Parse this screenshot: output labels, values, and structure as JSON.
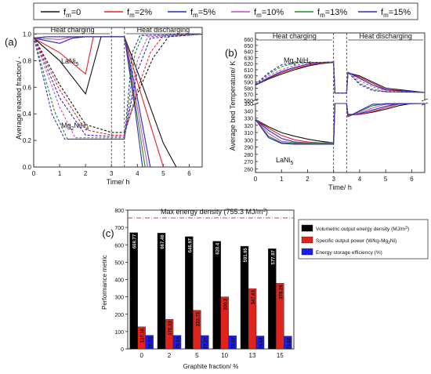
{
  "figure": {
    "legend": {
      "series_names": [
        "f",
        "f",
        "f",
        "f",
        "f",
        "f"
      ],
      "subscript": "m",
      "values": [
        "=0",
        "=2%",
        "=5%",
        "=10%",
        "=13%",
        "=15%"
      ],
      "colors": [
        "#111111",
        "#e0242a",
        "#2323c8",
        "#c44fbf",
        "#1a8a2a",
        "#3a2aa8"
      ]
    }
  },
  "chart_data": [
    {
      "type": "line",
      "panel_label": "(a)",
      "ylabel": "Average reacted fraction/ -",
      "xlabel": "Time/ h",
      "xlim": [
        0,
        6.5
      ],
      "ylim": [
        0,
        1.05
      ],
      "xticks": [
        "0",
        "1",
        "2",
        "3",
        "4",
        "5",
        "6"
      ],
      "yticks": [
        "0.0",
        "0.2",
        "0.4",
        "0.6",
        "0.8",
        "1.0"
      ],
      "phase_labels": [
        "Heat charging",
        "Heat discharging"
      ],
      "phase_boundaries": [
        3,
        3.5
      ],
      "annotations": [
        {
          "base": "LaNi",
          "sub": "5"
        },
        {
          "base": "Mg",
          "sub": "2",
          "tail": "NiH",
          "sub2": "4"
        }
      ],
      "series": [
        {
          "name": "LaNi5 fm=0",
          "color": "#111111",
          "style": "solid",
          "x": [
            0,
            1,
            2,
            2.6,
            3.5,
            4.0,
            4.5,
            5.0,
            5.5
          ],
          "y": [
            0.97,
            0.8,
            0.55,
            0.98,
            0.98,
            0.72,
            0.45,
            0.18,
            0.0
          ]
        },
        {
          "name": "LaNi5 fm=2%",
          "color": "#e0242a",
          "style": "solid",
          "x": [
            0,
            1,
            2,
            2.3,
            3.5,
            4.0,
            4.5,
            5.0
          ],
          "y": [
            0.97,
            0.86,
            0.7,
            0.98,
            0.98,
            0.64,
            0.32,
            0.0
          ]
        },
        {
          "name": "LaNi5 fm=5%",
          "color": "#2323c8",
          "style": "solid",
          "x": [
            0,
            1,
            1.5,
            2.0,
            3.5,
            4.0,
            4.5
          ],
          "y": [
            0.97,
            0.93,
            0.97,
            0.98,
            0.98,
            0.52,
            0.0
          ]
        },
        {
          "name": "LaNi5 fm=10%",
          "color": "#c44fbf",
          "style": "solid",
          "x": [
            0,
            1,
            1.5,
            3.5,
            4.0,
            4.4
          ],
          "y": [
            0.97,
            0.96,
            0.98,
            0.98,
            0.45,
            0.0
          ]
        },
        {
          "name": "LaNi5 fm=13%",
          "color": "#1a8a2a",
          "style": "solid",
          "x": [
            0,
            0.5,
            1.0,
            3.5,
            3.9,
            4.3
          ],
          "y": [
            0.97,
            0.98,
            0.98,
            0.98,
            0.5,
            0.0
          ]
        },
        {
          "name": "LaNi5 fm=15%",
          "color": "#3a2aa8",
          "style": "solid",
          "x": [
            0,
            0.5,
            1.0,
            3.5,
            3.9,
            4.2
          ],
          "y": [
            0.97,
            0.98,
            0.98,
            0.98,
            0.45,
            0.0
          ]
        },
        {
          "name": "Mg2NiH4 fm=0",
          "color": "#111111",
          "style": "dash",
          "x": [
            0,
            1,
            2,
            3.0,
            3.5,
            4.0,
            4.6,
            5.2,
            6.5
          ],
          "y": [
            0.98,
            0.62,
            0.32,
            0.26,
            0.26,
            0.55,
            0.82,
            0.98,
            1.0
          ]
        },
        {
          "name": "Mg2NiH4 fm=2%",
          "color": "#e0242a",
          "style": "dash",
          "x": [
            0,
            1,
            2,
            3.0,
            3.5,
            4.0,
            4.5,
            5.0,
            6.5
          ],
          "y": [
            0.98,
            0.58,
            0.28,
            0.24,
            0.24,
            0.58,
            0.86,
            0.99,
            1.0
          ]
        },
        {
          "name": "Mg2NiH4 fm=5%",
          "color": "#2323c8",
          "style": "dash",
          "x": [
            0,
            1,
            2,
            3.0,
            3.5,
            4.0,
            4.5,
            6.5
          ],
          "y": [
            0.98,
            0.52,
            0.24,
            0.23,
            0.23,
            0.72,
            0.97,
            1.0
          ]
        },
        {
          "name": "Mg2NiH4 fm=10%",
          "color": "#c44fbf",
          "style": "dash",
          "x": [
            0,
            1,
            1.6,
            3.0,
            3.5,
            4.0,
            4.4,
            6.5
          ],
          "y": [
            0.98,
            0.45,
            0.22,
            0.22,
            0.22,
            0.8,
            0.98,
            1.0
          ]
        },
        {
          "name": "Mg2NiH4 fm=13%",
          "color": "#1a8a2a",
          "style": "dash",
          "x": [
            0,
            0.8,
            1.3,
            3.0,
            3.5,
            3.9,
            4.2,
            6.5
          ],
          "y": [
            0.98,
            0.42,
            0.21,
            0.21,
            0.21,
            0.85,
            0.99,
            1.0
          ]
        },
        {
          "name": "Mg2NiH4 fm=15%",
          "color": "#3a2aa8",
          "style": "dash",
          "x": [
            0,
            0.7,
            1.2,
            3.0,
            3.5,
            3.8,
            4.1,
            6.5
          ],
          "y": [
            0.98,
            0.4,
            0.21,
            0.21,
            0.21,
            0.86,
            0.99,
            1.0
          ]
        }
      ]
    },
    {
      "type": "line",
      "panel_label": "(b)",
      "ylabel": "Average bed Temperature/ K",
      "xlabel": "Time/ h",
      "xlim": [
        0,
        6.5
      ],
      "ylim": [
        250,
        665
      ],
      "xticks": [
        "0",
        "1",
        "2",
        "3",
        "4",
        "5",
        "6"
      ],
      "yticks": [
        "260",
        "270",
        "280",
        "290",
        "300",
        "310",
        "320",
        "330",
        "340",
        "350",
        "560",
        "570",
        "580",
        "590",
        "600",
        "610",
        "620",
        "630",
        "640",
        "650",
        "660"
      ],
      "axis_break": [
        350,
        560
      ],
      "phase_labels": [
        "Heat charging",
        "Heat discharging"
      ],
      "phase_boundaries": [
        3,
        3.5
      ],
      "annotations": [
        {
          "base": "Mg",
          "sub": "2",
          "tail": "NiH",
          "sub2": "4"
        },
        {
          "base": "LaNi",
          "sub": "5"
        }
      ],
      "series": [
        {
          "name": "Mg2NiH4 fm=0",
          "color": "#111111",
          "style": "solid",
          "x": [
            0,
            0.5,
            1.0,
            1.5,
            2.0,
            2.5,
            3.0,
            3.05,
            3.5,
            3.55,
            4.0,
            4.5,
            5.0,
            6.5
          ],
          "y": [
            585,
            595,
            603,
            610,
            616,
            620,
            622,
            572,
            572,
            605,
            600,
            590,
            580,
            573
          ]
        },
        {
          "name": "Mg2NiH4 fm=2%",
          "color": "#e0242a",
          "style": "solid",
          "x": [
            0,
            0.5,
            1.0,
            1.5,
            2.0,
            2.5,
            3.0,
            3.05,
            3.5,
            3.55,
            4.0,
            4.5,
            5.0,
            6.5
          ],
          "y": [
            585,
            596,
            605,
            612,
            617,
            621,
            623,
            572,
            572,
            605,
            598,
            588,
            578,
            573
          ]
        },
        {
          "name": "Mg2NiH4 fm=5%",
          "color": "#2323c8",
          "style": "solid",
          "x": [
            0,
            0.5,
            1.0,
            1.5,
            2.0,
            2.5,
            3.0,
            3.05,
            3.5,
            3.55,
            4.0,
            4.5,
            5.0,
            6.5
          ],
          "y": [
            585,
            597,
            607,
            614,
            619,
            622,
            623,
            572,
            572,
            606,
            596,
            585,
            577,
            573
          ]
        },
        {
          "name": "Mg2NiH4 fm=10%",
          "color": "#c44fbf",
          "style": "dash",
          "x": [
            0,
            0.5,
            1.0,
            1.5,
            2.0,
            2.5,
            3.0,
            3.05,
            3.5,
            3.55,
            4.0,
            4.5,
            5.0,
            6.5
          ],
          "y": [
            586,
            600,
            610,
            617,
            621,
            622,
            623,
            572,
            572,
            606,
            592,
            582,
            575,
            573
          ]
        },
        {
          "name": "Mg2NiH4 fm=13%",
          "color": "#1a8a2a",
          "style": "dash",
          "x": [
            0,
            0.5,
            1.0,
            1.5,
            2.0,
            2.5,
            3.0,
            3.05,
            3.5,
            3.55,
            4.0,
            4.5,
            5.0,
            6.5
          ],
          "y": [
            586,
            603,
            615,
            621,
            622,
            622,
            622,
            572,
            572,
            606,
            588,
            578,
            574,
            573
          ]
        },
        {
          "name": "Mg2NiH4 fm=15%",
          "color": "#3a2aa8",
          "style": "dash",
          "x": [
            0,
            0.5,
            1.0,
            1.5,
            2.0,
            2.5,
            3.0,
            3.05,
            3.5,
            3.55,
            4.0,
            4.5,
            5.0,
            6.5
          ],
          "y": [
            586,
            605,
            618,
            622,
            622,
            622,
            622,
            572,
            572,
            606,
            586,
            576,
            574,
            573
          ]
        },
        {
          "name": "LaNi5 fm=0",
          "color": "#111111",
          "style": "solid",
          "x": [
            0,
            0.5,
            1.0,
            1.5,
            2.0,
            2.5,
            3.0,
            3.05,
            3.5,
            3.55,
            4.0,
            4.5,
            5.0,
            5.5,
            6.0,
            6.5
          ],
          "y": [
            328,
            318,
            310,
            305,
            301,
            298,
            296,
            350,
            350,
            335,
            335,
            338,
            342,
            347,
            350,
            350
          ]
        },
        {
          "name": "LaNi5 fm=2%",
          "color": "#e0242a",
          "style": "solid",
          "x": [
            0,
            0.5,
            1.0,
            1.5,
            2.0,
            2.5,
            3.0,
            3.05,
            3.5,
            3.55,
            4.0,
            4.5,
            5.0,
            5.5,
            6.0,
            6.5
          ],
          "y": [
            328,
            316,
            306,
            300,
            297,
            296,
            296,
            350,
            350,
            334,
            335,
            339,
            344,
            349,
            350,
            350
          ]
        },
        {
          "name": "LaNi5 fm=5%",
          "color": "#2323c8",
          "style": "solid",
          "x": [
            0,
            0.5,
            1.0,
            1.5,
            2.0,
            2.5,
            3.0,
            3.05,
            3.5,
            3.55,
            4.0,
            4.5,
            5.0,
            5.5,
            6.5
          ],
          "y": [
            328,
            313,
            302,
            297,
            296,
            296,
            296,
            350,
            350,
            333,
            336,
            341,
            346,
            350,
            350
          ]
        },
        {
          "name": "LaNi5 fm=10%",
          "color": "#c44fbf",
          "style": "solid",
          "x": [
            0,
            0.5,
            1.0,
            1.5,
            2.0,
            3.0,
            3.05,
            3.5,
            3.55,
            4.0,
            4.5,
            5.0,
            6.5
          ],
          "y": [
            328,
            309,
            298,
            296,
            296,
            296,
            350,
            350,
            333,
            337,
            344,
            349,
            350
          ]
        },
        {
          "name": "LaNi5 fm=13%",
          "color": "#1a8a2a",
          "style": "solid",
          "x": [
            0,
            0.5,
            1.0,
            1.5,
            3.0,
            3.05,
            3.5,
            3.55,
            4.0,
            4.5,
            5.0,
            6.5
          ],
          "y": [
            328,
            305,
            296,
            295,
            295,
            350,
            350,
            332,
            339,
            347,
            350,
            350
          ]
        },
        {
          "name": "LaNi5 fm=15%",
          "color": "#3a2aa8",
          "style": "solid",
          "x": [
            0,
            0.5,
            1.0,
            1.5,
            3.0,
            3.05,
            3.5,
            3.55,
            4.0,
            4.5,
            6.5
          ],
          "y": [
            328,
            303,
            295,
            294,
            294,
            350,
            350,
            332,
            340,
            349,
            350
          ]
        }
      ]
    },
    {
      "type": "bar",
      "panel_label": "(c)",
      "xlabel": "Graphite fraction/ %",
      "ylabel": "Performance metric",
      "ylim": [
        0,
        800
      ],
      "yticks": [
        "0",
        "100",
        "200",
        "300",
        "400",
        "500",
        "600",
        "700",
        "800"
      ],
      "categories": [
        "0",
        "2",
        "5",
        "10",
        "13",
        "15"
      ],
      "reference_line": {
        "value": 755.3,
        "label": "Max energy density (755.3 MJ/m",
        "label_sup": "3",
        "label_tail": ")",
        "color": "#c0282a"
      },
      "series": [
        {
          "name": "Volumetric output energy density (MJ/m",
          "name_sup": "3",
          "name_tail": ")",
          "color": "#000000",
          "values": [
            669.77,
            667.46,
            646.97,
            620.4,
            591.65,
            577.97
          ],
          "labels": [
            "669.77",
            "667.46",
            "646.97",
            "620.4",
            "591.65",
            "577.97"
          ]
        },
        {
          "name": "Specific output power (W/kg-Mg",
          "name_sub": "2",
          "name_tail": "Ni)",
          "color": "#e0241c",
          "values": [
            127.16,
            170.33,
            222.72,
            300.2,
            347.83,
            378.29
          ],
          "labels": [
            "127.16",
            "170.33",
            "222.72",
            "300.2",
            "347.83",
            "378.29"
          ]
        },
        {
          "name": "Energy storage efficiency (%)",
          "color": "#1c1cf0",
          "values": [
            78.53,
            78.13,
            77.27,
            76.07,
            74.54,
            73.82
          ],
          "labels": [
            "78.53",
            "78.13",
            "77.27",
            "76.07",
            "74.54",
            "73.82"
          ]
        }
      ]
    }
  ]
}
